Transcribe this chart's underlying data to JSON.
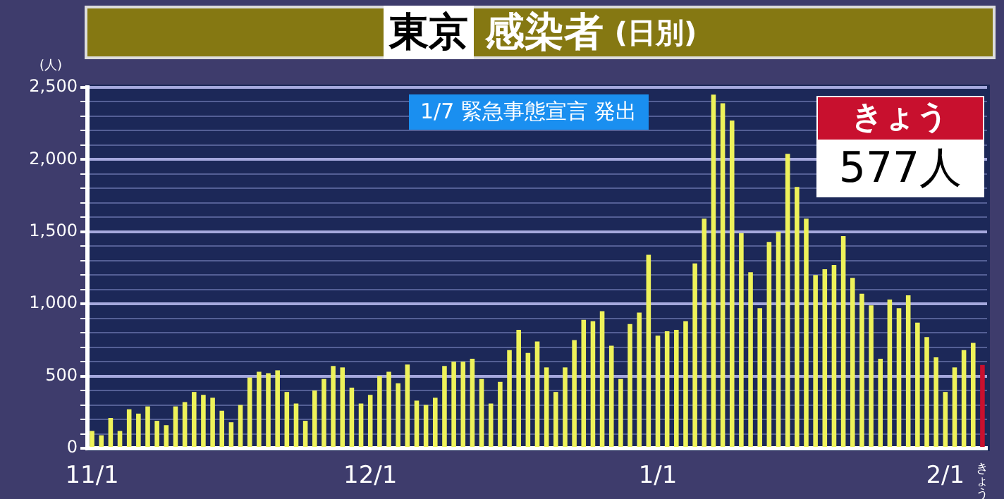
{
  "chart_data": {
    "type": "bar",
    "title": "東京 感染者 (日別)",
    "ylabel": "(人)",
    "categories": [
      "11/1",
      null,
      null,
      null,
      null,
      null,
      null,
      null,
      null,
      null,
      null,
      null,
      null,
      null,
      null,
      null,
      null,
      null,
      null,
      null,
      null,
      null,
      null,
      null,
      null,
      null,
      null,
      null,
      null,
      null,
      "12/1",
      null,
      null,
      null,
      null,
      null,
      null,
      null,
      null,
      null,
      null,
      null,
      null,
      null,
      null,
      null,
      null,
      null,
      null,
      null,
      null,
      null,
      null,
      null,
      null,
      null,
      null,
      null,
      null,
      null,
      null,
      "1/1",
      null,
      null,
      null,
      null,
      null,
      null,
      null,
      null,
      null,
      null,
      null,
      null,
      null,
      null,
      null,
      null,
      null,
      null,
      null,
      null,
      null,
      null,
      null,
      null,
      null,
      null,
      null,
      null,
      null,
      null,
      "2/1",
      null,
      null,
      null,
      "きょう"
    ],
    "values": [
      120,
      90,
      210,
      120,
      270,
      240,
      290,
      190,
      160,
      290,
      320,
      390,
      370,
      350,
      260,
      180,
      300,
      490,
      530,
      520,
      540,
      390,
      310,
      190,
      400,
      480,
      570,
      560,
      420,
      310,
      370,
      500,
      530,
      450,
      580,
      330,
      300,
      350,
      570,
      600,
      600,
      620,
      480,
      310,
      460,
      680,
      820,
      660,
      740,
      560,
      390,
      560,
      750,
      890,
      880,
      950,
      710,
      480,
      860,
      940,
      1340,
      780,
      810,
      820,
      880,
      1280,
      1590,
      2450,
      2390,
      2270,
      1490,
      1220,
      970,
      1430,
      1500,
      2040,
      1810,
      1590,
      1200,
      1240,
      1270,
      1470,
      1180,
      1070,
      990,
      620,
      1030,
      970,
      1060,
      870,
      770,
      630,
      390,
      560,
      680,
      730,
      577
    ],
    "colors": [
      "#eef25a",
      "#eef25a",
      "#eef25a",
      "#eef25a",
      "#eef25a",
      "#eef25a",
      "#eef25a",
      "#eef25a",
      "#eef25a",
      "#eef25a",
      "#eef25a",
      "#eef25a",
      "#eef25a",
      "#eef25a",
      "#eef25a",
      "#eef25a",
      "#eef25a",
      "#eef25a",
      "#eef25a",
      "#eef25a",
      "#eef25a",
      "#eef25a",
      "#eef25a",
      "#eef25a",
      "#eef25a",
      "#eef25a",
      "#eef25a",
      "#eef25a",
      "#eef25a",
      "#eef25a",
      "#eef25a",
      "#eef25a",
      "#eef25a",
      "#eef25a",
      "#eef25a",
      "#eef25a",
      "#eef25a",
      "#eef25a",
      "#eef25a",
      "#eef25a",
      "#eef25a",
      "#eef25a",
      "#eef25a",
      "#eef25a",
      "#eef25a",
      "#eef25a",
      "#eef25a",
      "#eef25a",
      "#eef25a",
      "#eef25a",
      "#eef25a",
      "#eef25a",
      "#eef25a",
      "#eef25a",
      "#eef25a",
      "#eef25a",
      "#eef25a",
      "#eef25a",
      "#eef25a",
      "#eef25a",
      "#eef25a",
      "#eef25a",
      "#eef25a",
      "#eef25a",
      "#eef25a",
      "#eef25a",
      "#eef25a",
      "#eef25a",
      "#eef25a",
      "#eef25a",
      "#eef25a",
      "#eef25a",
      "#eef25a",
      "#eef25a",
      "#eef25a",
      "#eef25a",
      "#eef25a",
      "#eef25a",
      "#eef25a",
      "#eef25a",
      "#eef25a",
      "#eef25a",
      "#eef25a",
      "#eef25a",
      "#eef25a",
      "#eef25a",
      "#eef25a",
      "#eef25a",
      "#eef25a",
      "#eef25a",
      "#eef25a",
      "#eef25a",
      "#eef25a",
      "#eef25a",
      "#eef25a",
      "#eef25a",
      "#c8102e"
    ],
    "ylim": [
      0,
      2500
    ],
    "yticks": [
      0,
      {
        "value": 100,
        "label": null
      },
      {
        "value": 200,
        "label": null
      },
      {
        "value": 300,
        "label": null
      },
      {
        "value": 400,
        "label": null
      },
      500,
      {
        "value": 600,
        "label": null
      },
      {
        "value": 700,
        "label": null
      },
      {
        "value": 800,
        "label": null
      },
      {
        "value": 900,
        "label": null
      },
      {
        "value": 1000,
        "label": "1,000"
      },
      {
        "value": 1100,
        "label": null
      },
      {
        "value": 1200,
        "label": null
      },
      {
        "value": 1300,
        "label": null
      },
      {
        "value": 1400,
        "label": null
      },
      {
        "value": 1500,
        "label": "1,500"
      },
      {
        "value": 1600,
        "label": null
      },
      {
        "value": 1700,
        "label": null
      },
      {
        "value": 1800,
        "label": null
      },
      {
        "value": 1900,
        "label": null
      },
      {
        "value": 2000,
        "label": "2,000"
      },
      {
        "value": 2100,
        "label": null
      },
      {
        "value": 2200,
        "label": null
      },
      {
        "value": 2300,
        "label": null
      },
      {
        "value": 2400,
        "label": null
      },
      {
        "value": 2500,
        "label": "2,500"
      }
    ],
    "grid": "y",
    "annotations": [
      "1/7 緊急事態宣言 発出",
      "きょう",
      "577人"
    ]
  }
}
